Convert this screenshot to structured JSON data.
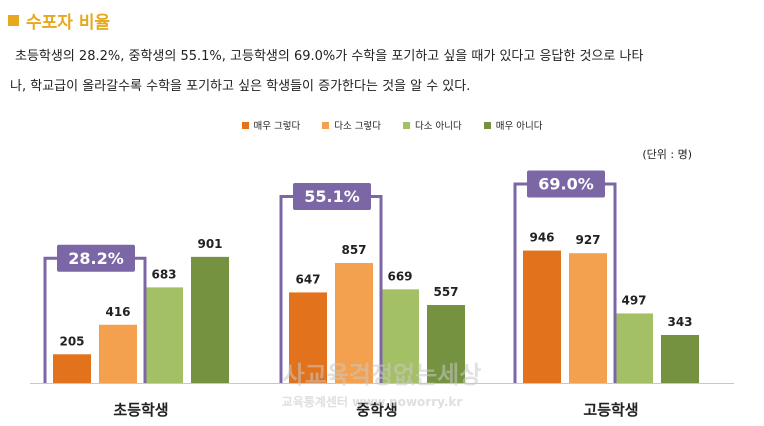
{
  "page": {
    "title": "수포자 비율",
    "description_line1": "초등학생의 28.2%, 중학생의 55.1%, 고등학생의 69.0%가 수학을 포기하고 싶을 때가 있다고 응답한 것으로 나타",
    "description_line2": "나, 학교급이 올라갈수록 수학을 포기하고 싶은 학생들이 증가한다는 것을 알 수 있다.",
    "unit_label": "(단위 : 명)",
    "watermark_line1": "사교육걱정없는세상",
    "watermark_line2": "교육통계센터  www.noworry.kr"
  },
  "colors": {
    "title": "#e6a91e",
    "highlight_border": "#7b66a6",
    "highlight_fill": "#7b66a6"
  },
  "chart_data": {
    "type": "bar",
    "title": "수포자 비율",
    "categories": [
      "초등학생",
      "중학생",
      "고등학생"
    ],
    "series": [
      {
        "name": "매우 그렇다",
        "color": "#e2721c",
        "values": [
          205,
          647,
          946
        ]
      },
      {
        "name": "다소 그렇다",
        "color": "#f4a14f",
        "values": [
          416,
          857,
          927
        ]
      },
      {
        "name": "다소 아니다",
        "color": "#a4c064",
        "values": [
          683,
          669,
          497
        ]
      },
      {
        "name": "매우 아니다",
        "color": "#74923f",
        "values": [
          901,
          557,
          343
        ]
      }
    ],
    "highlights": [
      "28.2%",
      "55.1%",
      "69.0%"
    ],
    "ylim": [
      0,
      1000
    ],
    "ylabel": "(단위 : 명)",
    "legend": "top-center",
    "grid": false
  }
}
